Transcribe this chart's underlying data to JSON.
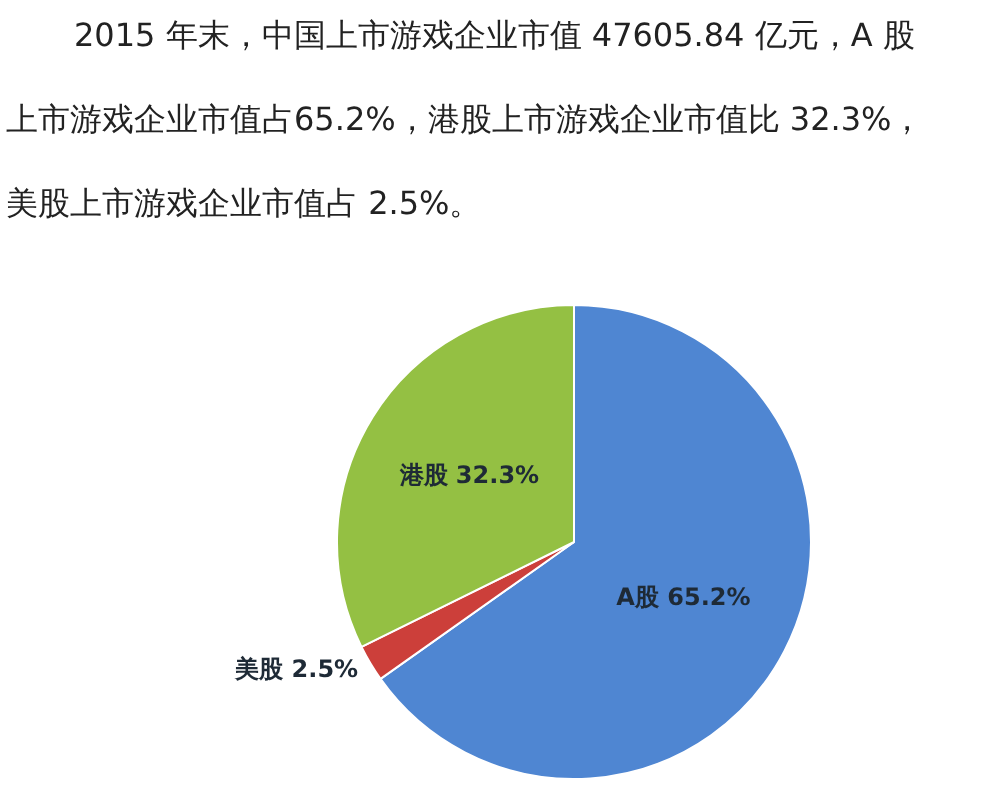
{
  "chart_data": {
    "type": "pie",
    "title": "2015 年末，中国上市游戏企业市值 47605.84 亿元，A 股上市游戏企业市值占65.2%，港股上市游戏企业市值比 32.3%，美股上市游戏企业市值占 2.5%。",
    "categories": [
      "A股",
      "美股",
      "港股"
    ],
    "values": [
      65.2,
      2.5,
      32.3
    ],
    "colors": [
      "#4f86d2",
      "#cc3f3a",
      "#94c043"
    ],
    "value_labels": [
      "65.2%",
      "2.5%",
      "32.3%"
    ]
  }
}
